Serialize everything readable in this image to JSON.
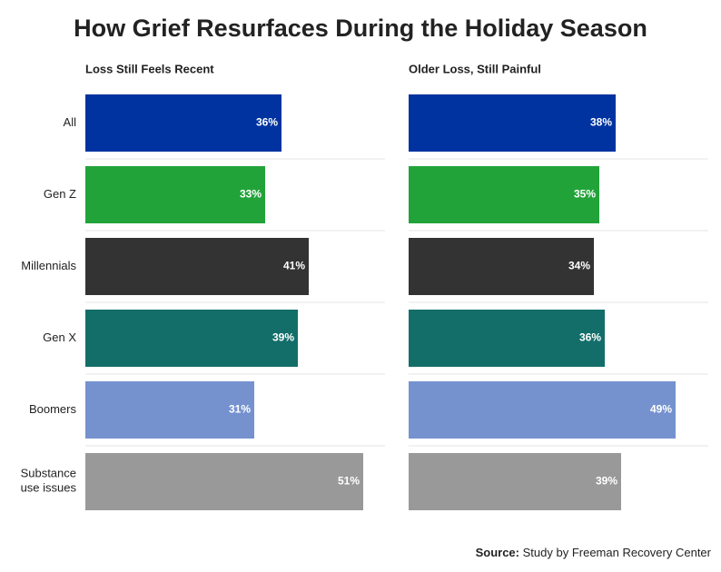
{
  "chart_data": {
    "type": "bar",
    "title": "How Grief Resurfaces During the Holiday Season",
    "categories": [
      "All",
      "Gen Z",
      "Millennials",
      "Gen X",
      "Boomers",
      "Substance\nuse issues"
    ],
    "colors": [
      "#0033a0",
      "#22a33a",
      "#333333",
      "#136e6a",
      "#7592cf",
      "#999999"
    ],
    "xlim": [
      0,
      55
    ],
    "series": [
      {
        "name": "Loss Still Feels Recent",
        "values": [
          36,
          33,
          41,
          39,
          31,
          51
        ],
        "value_labels": [
          "36%",
          "33%",
          "41%",
          "39%",
          "31%",
          "51%"
        ]
      },
      {
        "name": "Older Loss, Still Painful",
        "values": [
          38,
          35,
          34,
          36,
          49,
          39
        ],
        "value_labels": [
          "38%",
          "35%",
          "34%",
          "36%",
          "49%",
          "39%"
        ]
      }
    ],
    "source_label": "Source:",
    "source": "Study by Freeman Recovery Center"
  }
}
